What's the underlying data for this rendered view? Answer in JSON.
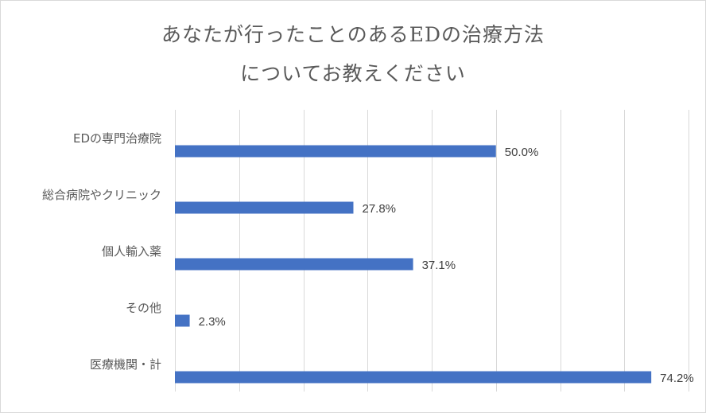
{
  "chart_data": {
    "type": "bar",
    "orientation": "horizontal",
    "title_lines": [
      "あなたが行ったことのあるEDの治療方法",
      "についてお教えください"
    ],
    "categories": [
      "EDの専門治療院",
      "総合病院やクリニック",
      "個人輸入薬",
      "その他",
      "医療機関・計"
    ],
    "values": [
      50.0,
      27.8,
      37.1,
      2.3,
      74.2
    ],
    "value_labels": [
      "50.0%",
      "27.8%",
      "37.1%",
      "2.3%",
      "74.2%"
    ],
    "xlim": [
      0,
      80
    ],
    "grid_step": 10,
    "grid": true,
    "legend": "none",
    "colors": {
      "bar": "#4472c4",
      "grid": "#d9d9d9",
      "text": "#595959"
    }
  }
}
